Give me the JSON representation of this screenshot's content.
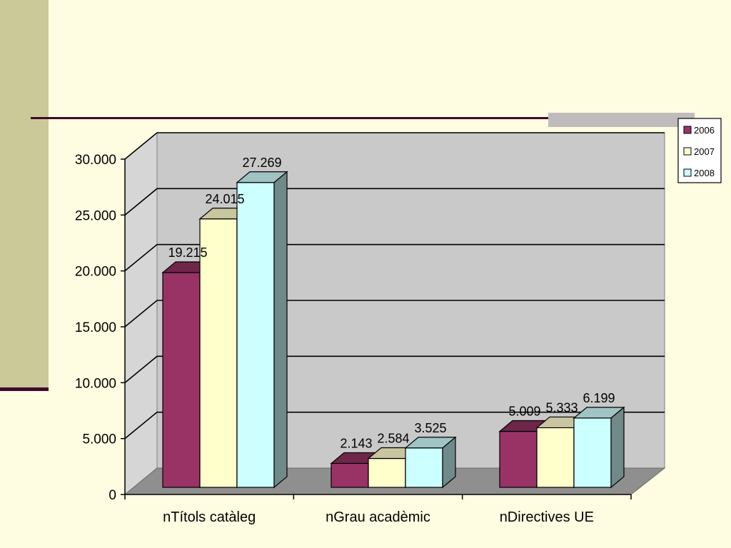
{
  "colors": {
    "background": "#FFFDE1",
    "left_band": "#CCC999",
    "rule": "#3F0A2E",
    "accent_block": "#C0BBBC",
    "wall": "#C9C9C9",
    "side_wall": "#D6D6D6",
    "floor": "#8F8F8F"
  },
  "chart_data": {
    "type": "bar",
    "categories": [
      "nTítols catàleg",
      "nGrau acadèmic",
      "nDirectives UE"
    ],
    "series": [
      {
        "name": "2006",
        "values": [
          19215,
          2143,
          5009
        ],
        "labels": [
          "19.215",
          "2.143",
          "5.009"
        ],
        "color": "#993366",
        "top": "#6E2649",
        "side": "#5E1E3E"
      },
      {
        "name": "2007",
        "values": [
          24015,
          2584,
          5333
        ],
        "labels": [
          "24.015",
          "2.584",
          "5.333"
        ],
        "color": "#FFFFCC",
        "top": "#C9C59E",
        "side": "#B3B08A"
      },
      {
        "name": "2008",
        "values": [
          27269,
          3525,
          6199
        ],
        "labels": [
          "27.269",
          "3.525",
          "6.199"
        ],
        "color": "#CCFFFF",
        "top": "#A0C3C3",
        "side": "#708A8A"
      }
    ],
    "y_ticks": [
      0,
      5000,
      10000,
      15000,
      20000,
      25000,
      30000
    ],
    "y_tick_labels": [
      "0",
      "5.000",
      "10.000",
      "15.000",
      "20.000",
      "25.000",
      "30.000"
    ],
    "ylim": [
      0,
      30000
    ],
    "grid": true,
    "legend_position": "top-right",
    "title": "",
    "xlabel": "",
    "ylabel": ""
  }
}
